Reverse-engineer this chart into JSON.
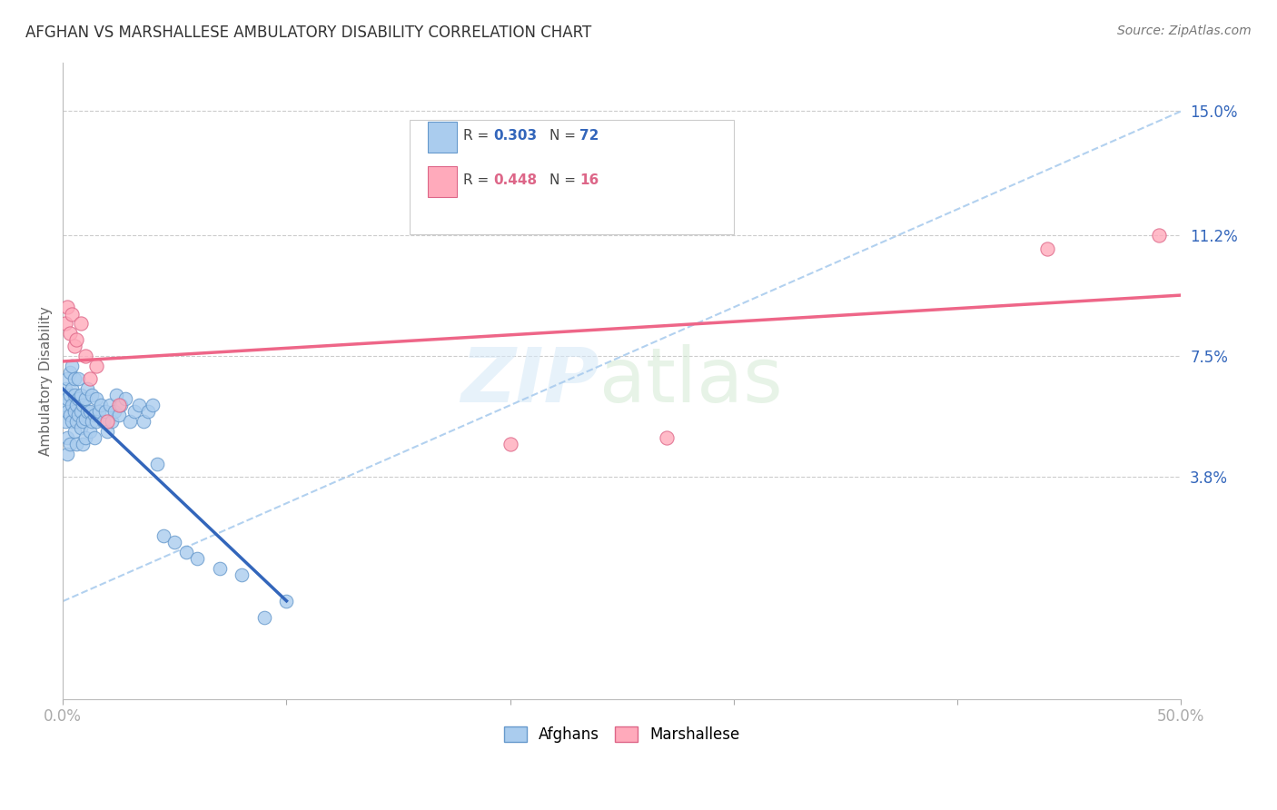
{
  "title": "AFGHAN VS MARSHALLESE AMBULATORY DISABILITY CORRELATION CHART",
  "source": "Source: ZipAtlas.com",
  "ylabel_label": "Ambulatory Disability",
  "right_ytick_positions": [
    0.038,
    0.075,
    0.112,
    0.15
  ],
  "right_ytick_labels": [
    "3.8%",
    "7.5%",
    "11.2%",
    "15.0%"
  ],
  "xmin": 0.0,
  "xmax": 0.5,
  "ymin": -0.03,
  "ymax": 0.165,
  "afghan_color": "#aaccee",
  "afghan_edge_color": "#6699cc",
  "marshallese_color": "#ffaabb",
  "marshallese_edge_color": "#dd6688",
  "afghan_line_color": "#3366bb",
  "marshallese_line_color": "#ee6688",
  "dashed_line_color": "#aaccee",
  "background_color": "#ffffff",
  "legend_R_afghan": "0.303",
  "legend_N_afghan": "72",
  "legend_R_marshallese": "0.448",
  "legend_N_marshallese": "16",
  "afghans_x": [
    0.001,
    0.001,
    0.001,
    0.002,
    0.002,
    0.002,
    0.002,
    0.002,
    0.003,
    0.003,
    0.003,
    0.003,
    0.004,
    0.004,
    0.004,
    0.004,
    0.005,
    0.005,
    0.005,
    0.005,
    0.006,
    0.006,
    0.006,
    0.007,
    0.007,
    0.007,
    0.008,
    0.008,
    0.008,
    0.009,
    0.009,
    0.009,
    0.01,
    0.01,
    0.01,
    0.011,
    0.011,
    0.012,
    0.012,
    0.013,
    0.013,
    0.014,
    0.014,
    0.015,
    0.015,
    0.016,
    0.017,
    0.018,
    0.019,
    0.02,
    0.021,
    0.022,
    0.023,
    0.024,
    0.025,
    0.026,
    0.028,
    0.03,
    0.032,
    0.034,
    0.036,
    0.038,
    0.04,
    0.042,
    0.045,
    0.05,
    0.055,
    0.06,
    0.07,
    0.08,
    0.09,
    0.1
  ],
  "afghans_y": [
    0.06,
    0.055,
    0.065,
    0.058,
    0.062,
    0.068,
    0.05,
    0.045,
    0.063,
    0.057,
    0.07,
    0.048,
    0.065,
    0.06,
    0.055,
    0.072,
    0.058,
    0.063,
    0.068,
    0.052,
    0.055,
    0.06,
    0.048,
    0.062,
    0.057,
    0.068,
    0.053,
    0.058,
    0.063,
    0.055,
    0.06,
    0.048,
    0.056,
    0.062,
    0.05,
    0.058,
    0.065,
    0.052,
    0.058,
    0.055,
    0.063,
    0.05,
    0.057,
    0.055,
    0.062,
    0.058,
    0.06,
    0.055,
    0.058,
    0.052,
    0.06,
    0.055,
    0.058,
    0.063,
    0.057,
    0.06,
    0.062,
    0.055,
    0.058,
    0.06,
    0.055,
    0.058,
    0.06,
    0.042,
    0.02,
    0.018,
    0.015,
    0.013,
    0.01,
    0.008,
    -0.005,
    0.0
  ],
  "marshallese_x": [
    0.001,
    0.002,
    0.003,
    0.004,
    0.005,
    0.006,
    0.008,
    0.01,
    0.012,
    0.015,
    0.02,
    0.025,
    0.2,
    0.27,
    0.44,
    0.49
  ],
  "marshallese_y": [
    0.085,
    0.09,
    0.082,
    0.088,
    0.078,
    0.08,
    0.085,
    0.075,
    0.068,
    0.072,
    0.055,
    0.06,
    0.048,
    0.05,
    0.108,
    0.112
  ]
}
